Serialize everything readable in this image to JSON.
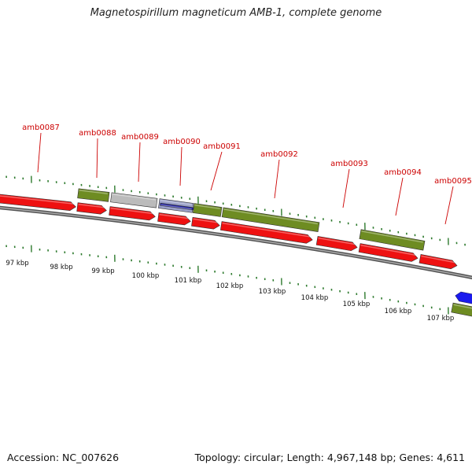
{
  "title": "Magnetospirillum magneticum AMB-1, complete genome",
  "footer": {
    "accession": "Accession: NC_007626",
    "summary": "Topology: circular; Length: 4,967,148 bp; Genes: 4,611"
  },
  "colors": {
    "gene_forward": "#ee1111",
    "gene_feature": "#6e8c22",
    "gene_label": "#cc0000",
    "pseudo": "#bbbbbb",
    "blue_feature": "#1a1aee",
    "tick": "#2d7a2d",
    "backbone": "#888888"
  },
  "gene_labels": [
    {
      "id": "g87",
      "text": "amb0087"
    },
    {
      "id": "g88",
      "text": "amb0088"
    },
    {
      "id": "g89",
      "text": "amb0089"
    },
    {
      "id": "g90",
      "text": "amb0090"
    },
    {
      "id": "g91",
      "text": "amb0091"
    },
    {
      "id": "g92",
      "text": "amb0092"
    },
    {
      "id": "g93",
      "text": "amb0093"
    },
    {
      "id": "g94",
      "text": "amb0094"
    },
    {
      "id": "g95",
      "text": "amb0095"
    }
  ],
  "scale_labels": [
    "97 kbp",
    "98 kbp",
    "99 kbp",
    "100 kbp",
    "101 kbp",
    "102 kbp",
    "103 kbp",
    "104 kbp",
    "105 kbp",
    "106 kbp",
    "107 kbp"
  ]
}
